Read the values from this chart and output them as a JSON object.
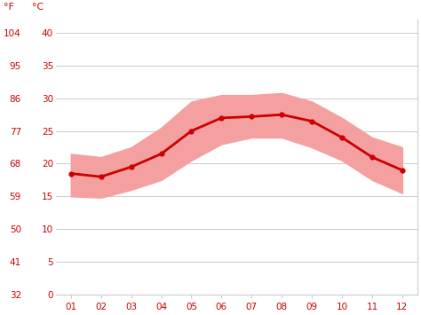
{
  "months": [
    1,
    2,
    3,
    4,
    5,
    6,
    7,
    8,
    9,
    10,
    11,
    12
  ],
  "month_labels": [
    "01",
    "02",
    "03",
    "04",
    "05",
    "06",
    "07",
    "08",
    "09",
    "10",
    "11",
    "12"
  ],
  "avg_temp_c": [
    18.5,
    18.0,
    19.5,
    21.5,
    25.0,
    27.0,
    27.2,
    27.5,
    26.5,
    24.0,
    21.0,
    19.0
  ],
  "high_temp_c": [
    21.5,
    21.0,
    22.5,
    25.5,
    29.5,
    30.5,
    30.5,
    30.8,
    29.5,
    27.0,
    24.0,
    22.5
  ],
  "low_temp_c": [
    15.0,
    14.8,
    16.0,
    17.5,
    20.5,
    23.0,
    24.0,
    24.0,
    22.5,
    20.5,
    17.5,
    15.5
  ],
  "line_color": "#cc0000",
  "band_color": "#f4a0a0",
  "bg_color": "#ffffff",
  "grid_color": "#cccccc",
  "tick_color": "#cc0000",
  "label_f": "°F",
  "label_c": "°C",
  "yticks_c": [
    0,
    5,
    10,
    15,
    20,
    25,
    30,
    35,
    40
  ],
  "yticks_f": [
    32,
    41,
    50,
    59,
    68,
    77,
    86,
    95,
    104
  ],
  "ylim_c": [
    0,
    42
  ],
  "xlim": [
    0.5,
    12.5
  ]
}
